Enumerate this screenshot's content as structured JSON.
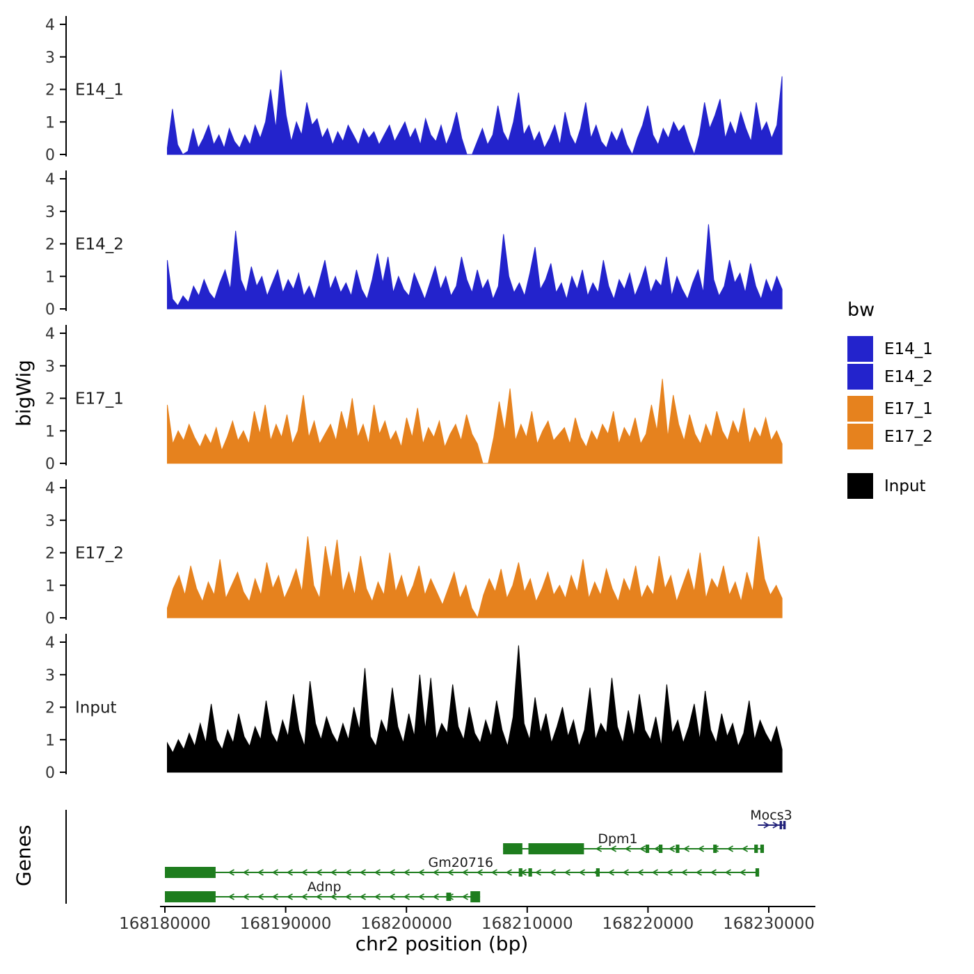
{
  "figure": {
    "ylab": "bigWig",
    "genes_label": "Genes",
    "xlabel": "chr2 position (bp)"
  },
  "legend": {
    "title": "bw",
    "entries": [
      {
        "label": "E14_1",
        "color": "#2323CC"
      },
      {
        "label": "E14_2",
        "color": "#2323CC"
      },
      {
        "label": "E17_1",
        "color": "#E6821E"
      },
      {
        "label": "E17_2",
        "color": "#E6821E"
      },
      {
        "label": "Input",
        "color": "#000000"
      }
    ]
  },
  "chart_data": {
    "type": "area",
    "title": "",
    "x_axis": {
      "label": "chr2 position (bp)",
      "ticks": [
        168180000,
        168190000,
        168200000,
        168210000,
        168220000,
        168230000
      ],
      "tick_labels": [
        "168180000",
        "168190000",
        "168200000",
        "168210000",
        "168220000",
        "168230000"
      ]
    },
    "y_axis": {
      "label": "bigWig",
      "ticks": [
        0,
        1,
        2,
        3,
        4
      ],
      "tick_labels": [
        "0",
        "1",
        "2",
        "3",
        "4"
      ],
      "ylim": [
        0,
        4
      ]
    },
    "signal_start": 168180200,
    "signal_end": 168231100,
    "tracks": [
      {
        "name": "E14_1",
        "color": "#2323CC",
        "values": [
          0.2,
          1.4,
          0.3,
          0,
          0.1,
          0.8,
          0.2,
          0.5,
          0.9,
          0.3,
          0.6,
          0.2,
          0.8,
          0.4,
          0.2,
          0.6,
          0.3,
          0.9,
          0.5,
          1.0,
          2.0,
          0.8,
          2.6,
          1.2,
          0.4,
          1.0,
          0.6,
          1.6,
          0.9,
          1.1,
          0.5,
          0.8,
          0.3,
          0.7,
          0.4,
          0.9,
          0.6,
          0.3,
          0.8,
          0.5,
          0.7,
          0.3,
          0.6,
          0.9,
          0.4,
          0.7,
          1.0,
          0.5,
          0.8,
          0.3,
          1.1,
          0.6,
          0.4,
          0.9,
          0.3,
          0.7,
          1.3,
          0.5,
          0,
          0,
          0.4,
          0.8,
          0.3,
          0.6,
          1.5,
          0.7,
          0.4,
          1.0,
          1.9,
          0.6,
          0.9,
          0.4,
          0.7,
          0.2,
          0.5,
          0.9,
          0.3,
          1.3,
          0.6,
          0.3,
          0.8,
          1.6,
          0.5,
          0.9,
          0.4,
          0.2,
          0.7,
          0.4,
          0.8,
          0.3,
          0,
          0.5,
          0.9,
          1.5,
          0.6,
          0.3,
          0.8,
          0.5,
          1.0,
          0.7,
          0.9,
          0.4,
          0,
          0.6,
          1.6,
          0.8,
          1.2,
          1.7,
          0.5,
          1.0,
          0.6,
          1.3,
          0.8,
          0.4,
          1.6,
          0.7,
          1.0,
          0.5,
          0.9,
          2.4
        ]
      },
      {
        "name": "E14_2",
        "color": "#2323CC",
        "values": [
          1.5,
          0.3,
          0.1,
          0.4,
          0.2,
          0.7,
          0.4,
          0.9,
          0.5,
          0.3,
          0.8,
          1.2,
          0.6,
          2.4,
          0.9,
          0.5,
          1.3,
          0.7,
          1.0,
          0.4,
          0.8,
          1.2,
          0.5,
          0.9,
          0.6,
          1.1,
          0.4,
          0.7,
          0.3,
          0.9,
          1.5,
          0.6,
          1.0,
          0.5,
          0.8,
          0.4,
          1.2,
          0.6,
          0.3,
          0.9,
          1.7,
          0.8,
          1.6,
          0.5,
          1.0,
          0.6,
          0.4,
          1.1,
          0.7,
          0.3,
          0.8,
          1.3,
          0.6,
          1.0,
          0.4,
          0.7,
          1.6,
          0.9,
          0.5,
          1.2,
          0.6,
          0.9,
          0.3,
          0.7,
          2.3,
          1.0,
          0.5,
          0.8,
          0.4,
          1.1,
          1.9,
          0.6,
          0.9,
          1.4,
          0.5,
          0.8,
          0.3,
          1.0,
          0.6,
          1.2,
          0.4,
          0.8,
          0.5,
          1.5,
          0.7,
          0.3,
          0.9,
          0.6,
          1.1,
          0.4,
          0.8,
          1.3,
          0.5,
          0.9,
          0.7,
          1.6,
          0.4,
          1.0,
          0.6,
          0.3,
          0.8,
          1.2,
          0.5,
          2.6,
          0.9,
          0.4,
          0.7,
          1.5,
          0.8,
          1.1,
          0.5,
          1.4,
          0.7,
          0.3,
          0.9,
          0.5,
          1.0,
          0.6
        ]
      },
      {
        "name": "E17_1",
        "color": "#E6821E",
        "values": [
          1.8,
          0.6,
          1.0,
          0.7,
          1.2,
          0.8,
          0.5,
          0.9,
          0.6,
          1.1,
          0.4,
          0.8,
          1.3,
          0.7,
          1.0,
          0.6,
          1.6,
          0.9,
          1.8,
          0.7,
          1.2,
          0.8,
          1.5,
          0.6,
          1.0,
          2.1,
          0.8,
          1.3,
          0.6,
          0.9,
          1.2,
          0.7,
          1.6,
          1.0,
          2.0,
          0.8,
          1.2,
          0.6,
          1.8,
          0.9,
          1.3,
          0.7,
          1.0,
          0.5,
          1.4,
          0.8,
          1.7,
          0.6,
          1.1,
          0.8,
          1.3,
          0.5,
          0.9,
          1.2,
          0.7,
          1.5,
          0.9,
          0.6,
          0,
          0,
          0.8,
          1.9,
          1.0,
          2.3,
          0.7,
          1.2,
          0.8,
          1.6,
          0.6,
          1.0,
          1.3,
          0.7,
          0.9,
          1.1,
          0.6,
          1.4,
          0.8,
          0.5,
          1.0,
          0.7,
          1.2,
          0.9,
          1.6,
          0.6,
          1.1,
          0.8,
          1.4,
          0.6,
          0.9,
          1.8,
          1.0,
          2.6,
          0.8,
          2.1,
          1.2,
          0.7,
          1.5,
          0.9,
          0.6,
          1.2,
          0.8,
          1.6,
          1.0,
          0.7,
          1.3,
          0.9,
          1.7,
          0.6,
          1.1,
          0.8,
          1.4,
          0.7,
          1.0,
          0.6
        ]
      },
      {
        "name": "E17_2",
        "color": "#E6821E",
        "values": [
          0.3,
          0.9,
          1.3,
          0.7,
          1.6,
          0.9,
          0.5,
          1.1,
          0.7,
          1.8,
          0.6,
          1.0,
          1.4,
          0.8,
          0.5,
          1.2,
          0.7,
          1.7,
          0.9,
          1.3,
          0.6,
          1.0,
          1.5,
          0.8,
          2.5,
          1.0,
          0.6,
          2.2,
          1.2,
          2.4,
          0.8,
          1.4,
          0.7,
          1.9,
          0.9,
          0.5,
          1.1,
          0.7,
          2.0,
          0.8,
          1.3,
          0.6,
          1.0,
          1.6,
          0.7,
          1.2,
          0.8,
          0.4,
          0.9,
          1.4,
          0.6,
          1.0,
          0.3,
          0,
          0.7,
          1.2,
          0.8,
          1.5,
          0.6,
          1.0,
          1.7,
          0.8,
          1.2,
          0.5,
          0.9,
          1.4,
          0.7,
          1.0,
          0.6,
          1.3,
          0.8,
          1.8,
          0.6,
          1.1,
          0.7,
          1.5,
          0.9,
          0.5,
          1.2,
          0.8,
          1.6,
          0.6,
          1.0,
          0.7,
          1.9,
          0.9,
          1.3,
          0.5,
          1.0,
          1.5,
          0.8,
          2.0,
          0.6,
          1.2,
          0.9,
          1.6,
          0.7,
          1.1,
          0.5,
          1.4,
          0.8,
          2.5,
          1.2,
          0.7,
          1.0,
          0.6
        ]
      },
      {
        "name": "Input",
        "color": "#000000",
        "values": [
          0.9,
          0.6,
          1.0,
          0.7,
          1.2,
          0.8,
          1.5,
          0.9,
          2.1,
          1.0,
          0.7,
          1.3,
          0.9,
          1.8,
          1.1,
          0.8,
          1.4,
          1.0,
          2.2,
          1.2,
          0.9,
          1.6,
          1.1,
          2.4,
          1.3,
          0.8,
          2.8,
          1.5,
          1.0,
          1.7,
          1.2,
          0.9,
          1.5,
          1.0,
          2.0,
          1.3,
          3.2,
          1.1,
          0.8,
          1.6,
          1.2,
          2.6,
          1.4,
          0.9,
          1.8,
          1.1,
          3.0,
          1.3,
          2.9,
          1.0,
          1.5,
          1.2,
          2.7,
          1.4,
          1.0,
          2.0,
          1.2,
          0.9,
          1.6,
          1.1,
          2.2,
          1.3,
          0.8,
          1.7,
          3.9,
          1.5,
          1.0,
          2.3,
          1.2,
          1.8,
          0.9,
          1.4,
          2.0,
          1.1,
          1.6,
          0.8,
          1.3,
          2.6,
          1.0,
          1.5,
          1.2,
          2.9,
          1.4,
          0.9,
          1.9,
          1.1,
          2.4,
          1.3,
          1.0,
          1.7,
          0.8,
          2.7,
          1.2,
          1.6,
          0.9,
          1.4,
          2.1,
          1.0,
          2.5,
          1.3,
          0.9,
          1.8,
          1.1,
          1.5,
          0.8,
          1.2,
          2.2,
          1.0,
          1.6,
          1.2,
          0.9,
          1.4,
          0.7
        ]
      }
    ],
    "genes_panel": {
      "label": "Genes",
      "genes": [
        {
          "name": "Mocs3",
          "color": "#22227A",
          "strand": "+",
          "row": 0,
          "start": 168229100,
          "end": 168231400,
          "label_x": 168230200,
          "exons": [
            {
              "start": 168230900,
              "end": 168231100,
              "thick": false
            },
            {
              "start": 168231200,
              "end": 168231400,
              "thick": false
            }
          ]
        },
        {
          "name": "Dpm1",
          "color": "#1E7D1E",
          "strand": "-",
          "row": 1,
          "start": 168208000,
          "end": 168229600,
          "label_x": 168217500,
          "exons": [
            {
              "start": 168208000,
              "end": 168209600,
              "thick": true
            },
            {
              "start": 168210100,
              "end": 168214700,
              "thick": true
            },
            {
              "start": 168219800,
              "end": 168220100,
              "thick": false
            },
            {
              "start": 168220900,
              "end": 168221200,
              "thick": false
            },
            {
              "start": 168222300,
              "end": 168222600,
              "thick": false
            },
            {
              "start": 168225400,
              "end": 168225700,
              "thick": false
            },
            {
              "start": 168228800,
              "end": 168229100,
              "thick": false
            },
            {
              "start": 168229300,
              "end": 168229600,
              "thick": false
            }
          ]
        },
        {
          "name": "Gm20716",
          "color": "#1E7D1E",
          "strand": "-",
          "row": 2,
          "start": 168180000,
          "end": 168229200,
          "label_x": 168204500,
          "exons": [
            {
              "start": 168180000,
              "end": 168184200,
              "thick": true
            },
            {
              "start": 168209300,
              "end": 168209600,
              "thick": false
            },
            {
              "start": 168210100,
              "end": 168210400,
              "thick": false
            },
            {
              "start": 168215700,
              "end": 168216000,
              "thick": false
            },
            {
              "start": 168228900,
              "end": 168229200,
              "thick": false
            }
          ]
        },
        {
          "name": "Adnp",
          "color": "#1E7D1E",
          "strand": "-",
          "row": 3,
          "start": 168180000,
          "end": 168206100,
          "label_x": 168193200,
          "exons": [
            {
              "start": 168180000,
              "end": 168184200,
              "thick": true
            },
            {
              "start": 168203300,
              "end": 168203700,
              "thick": false
            },
            {
              "start": 168205300,
              "end": 168206100,
              "thick": true
            }
          ]
        }
      ]
    }
  }
}
